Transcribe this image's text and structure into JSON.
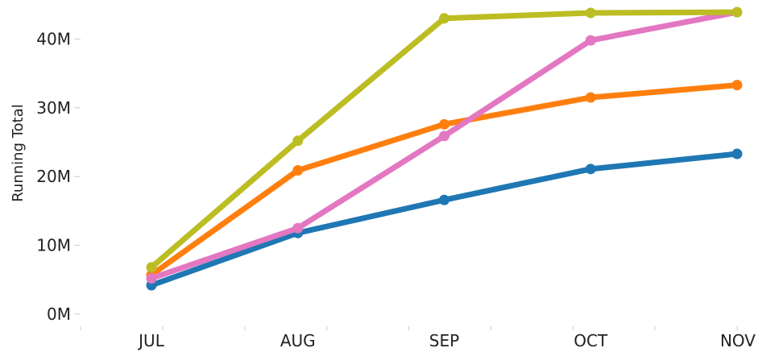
{
  "chart_data": {
    "type": "line",
    "title": "",
    "xlabel": "",
    "ylabel": "Running Total",
    "categories": [
      "JUL",
      "AUG",
      "SEP",
      "OCT",
      "NOV"
    ],
    "yticks": [
      0,
      10000000,
      20000000,
      30000000,
      40000000
    ],
    "ytick_labels": [
      "0M",
      "10M",
      "20M",
      "30M",
      "40M"
    ],
    "ylim": [
      0,
      44500000
    ],
    "grid": false,
    "legend": "none",
    "series": [
      {
        "color": "#1f77b4",
        "values": [
          4200000,
          11800000,
          16600000,
          21100000,
          23300000
        ]
      },
      {
        "color": "#ff7f0e",
        "values": [
          5700000,
          20900000,
          27600000,
          31500000,
          33300000
        ]
      },
      {
        "color": "#e377c2",
        "values": [
          5200000,
          12500000,
          25900000,
          39800000,
          43900000
        ]
      },
      {
        "color": "#bcbd22",
        "values": [
          6800000,
          25200000,
          43000000,
          43800000,
          43900000
        ]
      }
    ]
  }
}
